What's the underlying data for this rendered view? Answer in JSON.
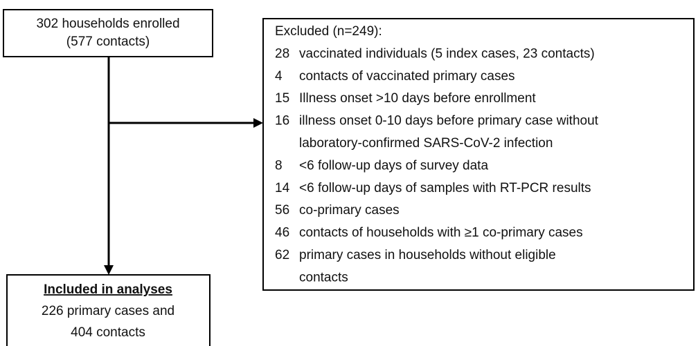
{
  "enrolled": {
    "lines": [
      "302 households enrolled",
      "(577 contacts)"
    ]
  },
  "excluded": {
    "title": "Excluded (n=249):",
    "items": [
      {
        "count": 28,
        "lines": [
          "vaccinated individuals (5 index cases, 23 contacts)"
        ]
      },
      {
        "count": 4,
        "lines": [
          "contacts of vaccinated primary cases"
        ]
      },
      {
        "count": 15,
        "lines": [
          "Illness onset >10 days before enrollment"
        ]
      },
      {
        "count": 16,
        "lines": [
          "illness onset 0-10 days before primary case without",
          "laboratory-confirmed SARS-CoV-2 infection"
        ]
      },
      {
        "count": 8,
        "lines": [
          "<6 follow-up days of survey data"
        ]
      },
      {
        "count": 14,
        "lines": [
          "<6 follow-up days of samples with RT-PCR results"
        ]
      },
      {
        "count": 56,
        "lines": [
          "co-primary cases"
        ]
      },
      {
        "count": 46,
        "lines": [
          "contacts of households with ≥1 co-primary cases"
        ]
      },
      {
        "count": 62,
        "lines": [
          "primary cases in households without eligible",
          "contacts"
        ]
      }
    ]
  },
  "included": {
    "title": "Included in analyses",
    "lines": [
      "226 primary cases and",
      "404 contacts"
    ]
  }
}
